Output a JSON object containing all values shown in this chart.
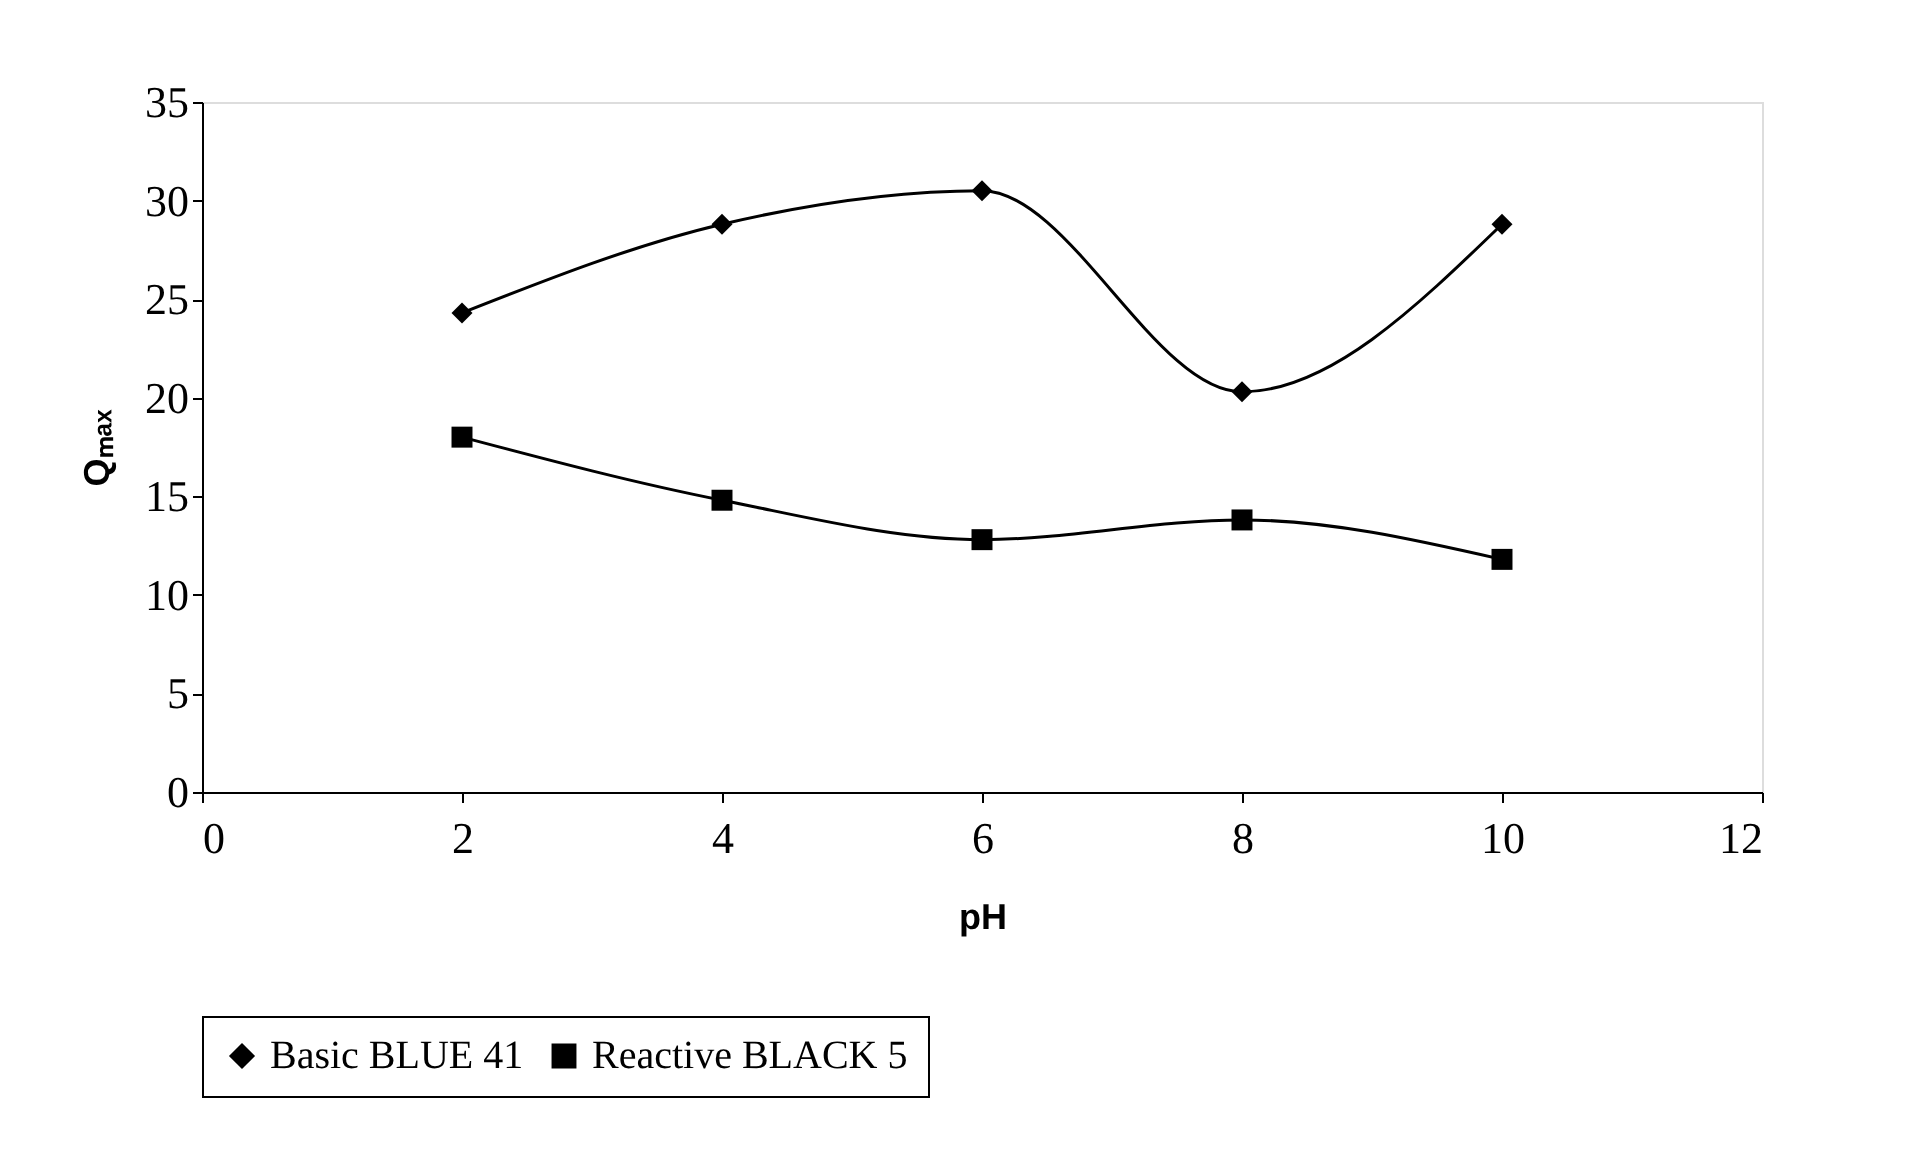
{
  "chart_data": {
    "type": "line",
    "xlabel": "pH",
    "ylabel": "Qₘₐₓ",
    "x": [
      2,
      4,
      6,
      8,
      10
    ],
    "series": [
      {
        "name": "Basic BLUE 41",
        "color": "#000000",
        "marker": "diamond",
        "values": [
          24.3,
          28.8,
          30.5,
          20.3,
          28.8
        ]
      },
      {
        "name": "Reactive BLACK 5",
        "color": "#000000",
        "marker": "square",
        "values": [
          18,
          14.8,
          12.8,
          13.8,
          11.8
        ]
      }
    ],
    "xlim": [
      0,
      12
    ],
    "xticks": [
      0,
      2,
      4,
      6,
      8,
      10,
      12
    ],
    "ylim": [
      0,
      35
    ],
    "yticks": [
      0,
      5,
      10,
      15,
      20,
      25,
      30,
      35
    ],
    "grid": false,
    "legend": "bottom",
    "line_style": "solid"
  }
}
